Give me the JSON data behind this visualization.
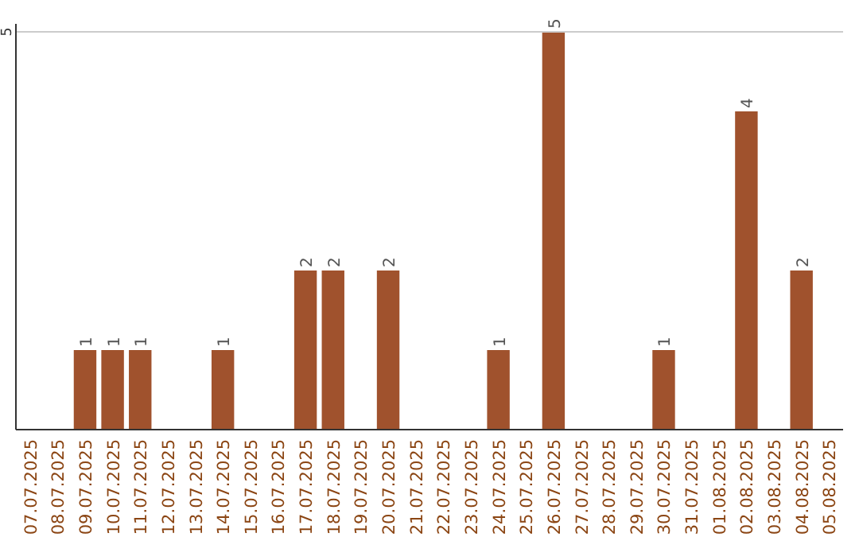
{
  "chart_data": {
    "type": "bar",
    "categories": [
      "07.07.2025",
      "08.07.2025",
      "09.07.2025",
      "10.07.2025",
      "11.07.2025",
      "12.07.2025",
      "13.07.2025",
      "14.07.2025",
      "15.07.2025",
      "16.07.2025",
      "17.07.2025",
      "18.07.2025",
      "19.07.2025",
      "20.07.2025",
      "21.07.2025",
      "22.07.2025",
      "23.07.2025",
      "24.07.2025",
      "25.07.2025",
      "26.07.2025",
      "27.07.2025",
      "28.07.2025",
      "29.07.2025",
      "30.07.2025",
      "31.07.2025",
      "01.08.2025",
      "02.08.2025",
      "03.08.2025",
      "04.08.2025",
      "05.08.2025"
    ],
    "values": [
      0,
      0,
      1,
      1,
      1,
      0,
      0,
      1,
      0,
      0,
      2,
      2,
      0,
      2,
      0,
      0,
      0,
      1,
      0,
      5,
      0,
      0,
      0,
      1,
      0,
      0,
      4,
      0,
      2,
      0
    ],
    "value_labels": [
      null,
      null,
      "1",
      "1",
      "1",
      null,
      null,
      "1",
      null,
      null,
      "2",
      "2",
      null,
      "2",
      null,
      null,
      null,
      "1",
      null,
      "5",
      null,
      null,
      null,
      "1",
      null,
      null,
      "4",
      null,
      "2",
      null
    ],
    "color": "#a0522d",
    "ylim": [
      0,
      5
    ],
    "yticks": [
      5
    ]
  }
}
